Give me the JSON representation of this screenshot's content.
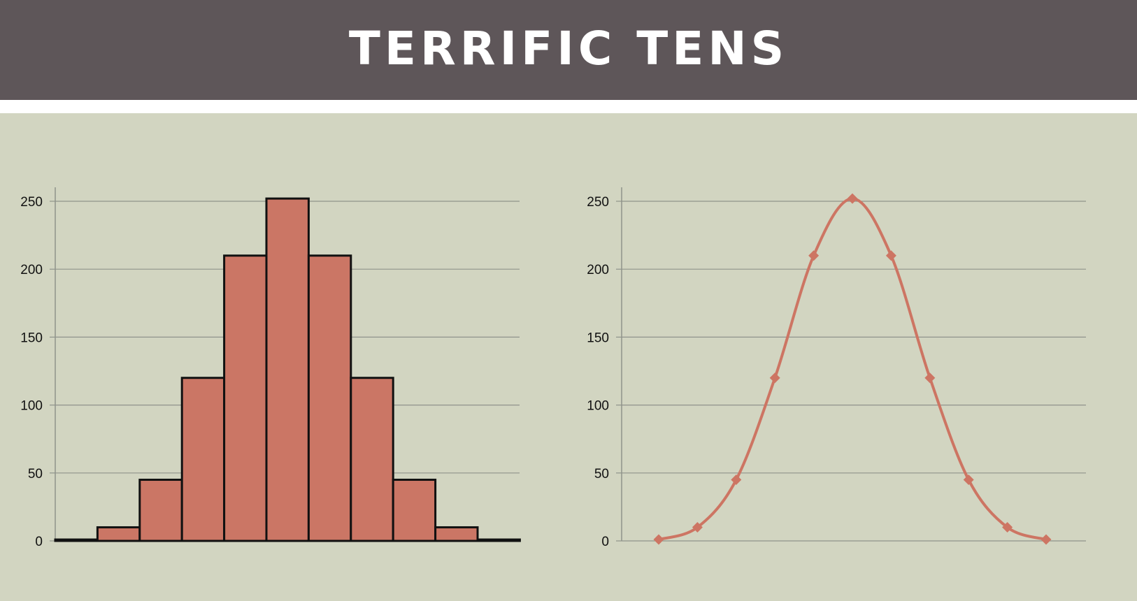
{
  "header": {
    "title": "TERRIFIC TENS"
  },
  "colors": {
    "header_bg": "#5e5659",
    "panel_bg": "#d2d5c1",
    "bar_fill": "#cb7665",
    "line_color": "#cd7563",
    "grid": "#8f938b"
  },
  "chart_data": [
    {
      "type": "bar",
      "title": "",
      "xlabel": "",
      "ylabel": "",
      "categories": [
        "",
        "",
        "",
        "",
        "",
        "",
        "",
        "",
        "",
        "",
        ""
      ],
      "values": [
        1,
        10,
        45,
        120,
        210,
        252,
        210,
        120,
        45,
        10,
        1
      ],
      "ylim": [
        0,
        260
      ],
      "yticks": [
        0,
        50,
        100,
        150,
        200,
        250
      ],
      "grid": true,
      "legend": "none"
    },
    {
      "type": "line",
      "title": "",
      "xlabel": "",
      "ylabel": "",
      "x": [
        0,
        1,
        2,
        3,
        4,
        5,
        6,
        7,
        8,
        9,
        10
      ],
      "series": [
        {
          "values": [
            1,
            10,
            45,
            120,
            210,
            252,
            210,
            120,
            45,
            10,
            1
          ]
        }
      ],
      "marker": "diamond",
      "smooth": true,
      "ylim": [
        0,
        260
      ],
      "yticks": [
        0,
        50,
        100,
        150,
        200,
        250
      ],
      "grid": true,
      "legend": "none"
    }
  ]
}
